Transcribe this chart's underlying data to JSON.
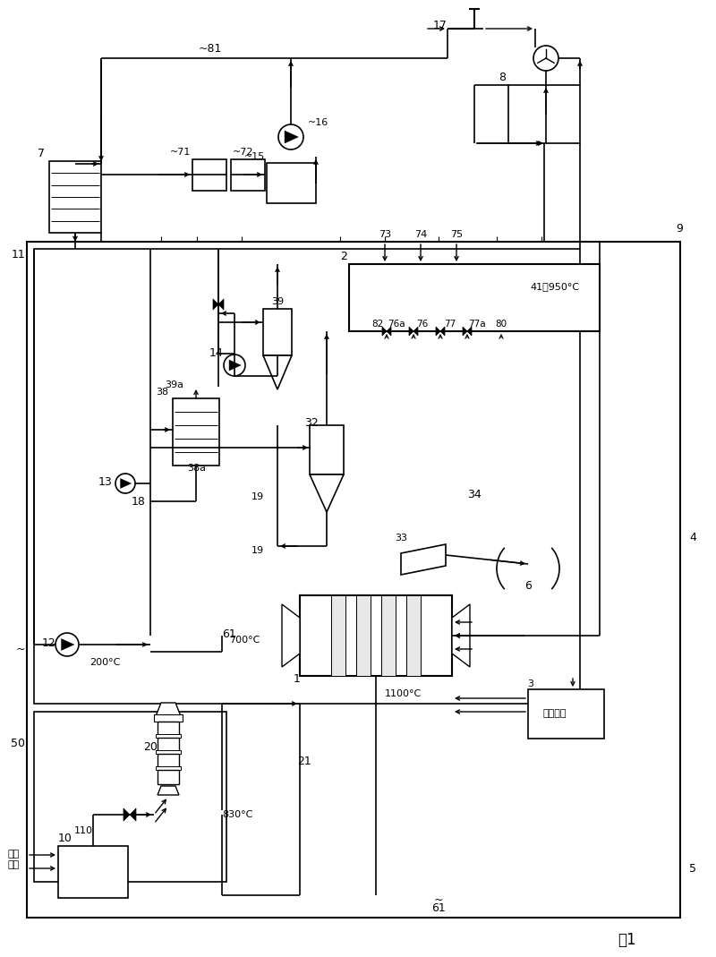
{
  "title": "图1",
  "bg_color": "#ffffff",
  "sewage_label": "污水\n污泥",
  "aux_fuel_label": "辅助燃料",
  "temp_200": "200°C",
  "temp_700": "700°C",
  "temp_830": "830°C",
  "temp_1100": "1100°C",
  "temp_41_950": "41～950°C"
}
